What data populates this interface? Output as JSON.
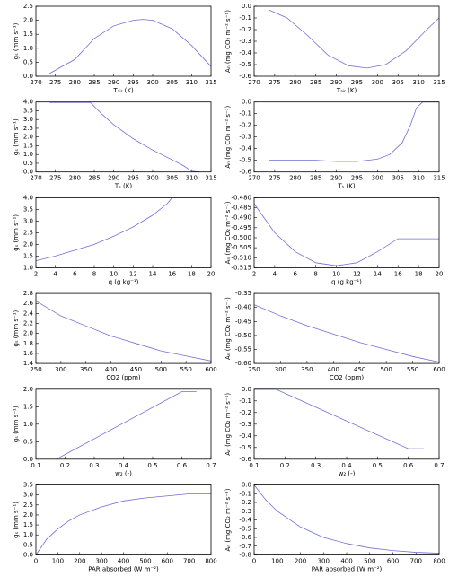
{
  "chart_data": [
    {
      "type": "line",
      "xlabel": "Tₐᵢᵣ (K)",
      "ylabel": "gₛ (mm s⁻¹)",
      "color": "#6f6fd8",
      "x": [
        273.5,
        280,
        285,
        290,
        295,
        297.5,
        300,
        305,
        310,
        315
      ],
      "values": [
        0.1,
        0.6,
        1.35,
        1.8,
        2.0,
        2.03,
        2.0,
        1.7,
        1.1,
        0.35
      ],
      "xlim": [
        270,
        315
      ],
      "xticks": [
        270,
        275,
        280,
        285,
        290,
        295,
        300,
        305,
        310,
        315
      ],
      "ylim": [
        0,
        2.5
      ],
      "yticks": [
        {
          "value": 0,
          "label": "0.0"
        },
        0.5,
        {
          "value": 1,
          "label": "1.0"
        },
        1.5,
        {
          "value": 2,
          "label": "2.0"
        },
        2.5
      ]
    },
    {
      "type": "line",
      "xlabel": "Tₐᵢᵣ (K)",
      "ylabel": "Aₙ (mg CO₂ m⁻² s⁻¹)",
      "color": "#6f6fd8",
      "x": [
        273.5,
        278,
        283,
        288,
        293,
        297.5,
        302,
        307,
        312,
        315
      ],
      "values": [
        -0.03,
        -0.1,
        -0.25,
        -0.42,
        -0.51,
        -0.53,
        -0.5,
        -0.38,
        -0.2,
        -0.1
      ],
      "xlim": [
        270,
        315
      ],
      "xticks": [
        270,
        275,
        280,
        285,
        290,
        295,
        300,
        305,
        310,
        315
      ],
      "ylim": [
        -0.6,
        0
      ],
      "yticks": [
        -0.6,
        -0.5,
        -0.4,
        -0.3,
        -0.2,
        -0.1,
        {
          "value": 0,
          "label": "0.0"
        }
      ]
    },
    {
      "type": "line",
      "xlabel": "Tₛ (K)",
      "ylabel": "gₛ (mm s⁻¹)",
      "color": "#6f6fd8",
      "x": [
        273.5,
        284,
        287,
        290,
        295,
        300,
        305,
        308,
        310,
        312
      ],
      "values": [
        3.97,
        3.97,
        3.3,
        2.7,
        1.9,
        1.25,
        0.7,
        0.35,
        0.05,
        0
      ],
      "xlim": [
        270,
        315
      ],
      "xticks": [
        270,
        275,
        280,
        285,
        290,
        295,
        300,
        305,
        310,
        315
      ],
      "ylim": [
        0,
        4
      ],
      "yticks": [
        {
          "value": 0,
          "label": "0.0"
        },
        0.5,
        {
          "value": 1,
          "label": "1.0"
        },
        1.5,
        {
          "value": 2,
          "label": "2.0"
        },
        2.5,
        {
          "value": 3,
          "label": "3.0"
        },
        3.5,
        {
          "value": 4,
          "label": "4.0"
        }
      ]
    },
    {
      "type": "line",
      "xlabel": "Tₛ (K)",
      "ylabel": "Aₙ (mg CO₂ m⁻² s⁻¹)",
      "color": "#6f6fd8",
      "x": [
        273.5,
        285,
        290,
        295,
        300,
        303,
        306,
        308,
        309.5,
        311,
        315
      ],
      "values": [
        -0.5,
        -0.5,
        -0.51,
        -0.51,
        -0.49,
        -0.45,
        -0.35,
        -0.2,
        -0.05,
        0,
        0
      ],
      "xlim": [
        270,
        315
      ],
      "xticks": [
        270,
        275,
        280,
        285,
        290,
        295,
        300,
        305,
        310,
        315
      ],
      "ylim": [
        -0.6,
        0
      ],
      "yticks": [
        -0.6,
        -0.5,
        -0.4,
        -0.3,
        -0.2,
        -0.1,
        {
          "value": 0,
          "label": "0.0"
        }
      ]
    },
    {
      "type": "line",
      "xlabel": "q (g kg⁻¹)",
      "ylabel": "gₛ (mm s⁻¹)",
      "color": "#6f6fd8",
      "x": [
        2,
        4,
        6,
        8,
        10,
        12,
        14,
        15.5,
        16
      ],
      "values": [
        1.3,
        1.5,
        1.75,
        2.0,
        2.35,
        2.75,
        3.25,
        3.75,
        4.0
      ],
      "xlim": [
        2,
        20
      ],
      "xticks": [
        2,
        4,
        6,
        8,
        10,
        12,
        14,
        16,
        18,
        20
      ],
      "ylim": [
        1,
        4
      ],
      "yticks": [
        {
          "value": 1,
          "label": "1.0"
        },
        1.5,
        {
          "value": 2,
          "label": "2.0"
        },
        2.5,
        {
          "value": 3,
          "label": "3.0"
        },
        3.5,
        {
          "value": 4,
          "label": "4.0"
        }
      ]
    },
    {
      "type": "line",
      "xlabel": "q (g kg⁻¹)",
      "ylabel": "Aₙ (mg CO₂ m⁻² s⁻¹)",
      "color": "#6f6fd8",
      "x": [
        2,
        4,
        6,
        8,
        10,
        12,
        14,
        16,
        20
      ],
      "values": [
        -0.483,
        -0.4975,
        -0.507,
        -0.5125,
        -0.514,
        -0.5125,
        -0.507,
        -0.5005,
        -0.5005
      ],
      "xlim": [
        2,
        20
      ],
      "xticks": [
        2,
        4,
        6,
        8,
        10,
        12,
        14,
        16,
        18,
        20
      ],
      "ylim": [
        -0.515,
        -0.48
      ],
      "yticks": [
        -0.515,
        {
          "value": -0.51,
          "label": "-0.510"
        },
        -0.505,
        {
          "value": -0.5,
          "label": "-0.500"
        },
        -0.495,
        {
          "value": -0.49,
          "label": "-0.490"
        },
        -0.485,
        {
          "value": -0.48,
          "label": "-0.480"
        }
      ]
    },
    {
      "type": "line",
      "xlabel": "CO2 (ppm)",
      "ylabel": "gₛ (mm s⁻¹)",
      "color": "#6f6fd8",
      "x": [
        250,
        300,
        350,
        400,
        450,
        500,
        550,
        600
      ],
      "values": [
        2.65,
        2.35,
        2.15,
        1.95,
        1.8,
        1.65,
        1.55,
        1.45
      ],
      "xlim": [
        250,
        600
      ],
      "xticks": [
        250,
        300,
        350,
        400,
        450,
        500,
        550,
        600
      ],
      "ylim": [
        1.4,
        2.8
      ],
      "yticks": [
        1.4,
        1.6,
        1.8,
        {
          "value": 2,
          "label": "2.0"
        },
        2.2,
        2.4,
        2.6,
        2.8
      ]
    },
    {
      "type": "line",
      "xlabel": "CO2 (ppm)",
      "ylabel": "Aₙ (mg CO₂ m⁻² s⁻¹)",
      "color": "#6f6fd8",
      "x": [
        250,
        300,
        350,
        400,
        450,
        500,
        550,
        600
      ],
      "values": [
        -0.39,
        -0.43,
        -0.465,
        -0.495,
        -0.525,
        -0.55,
        -0.575,
        -0.595
      ],
      "xlim": [
        250,
        600
      ],
      "xticks": [
        250,
        300,
        350,
        400,
        450,
        500,
        550,
        600
      ],
      "ylim": [
        -0.6,
        -0.35
      ],
      "yticks": [
        {
          "value": -0.6,
          "label": "-0.60"
        },
        -0.55,
        {
          "value": -0.5,
          "label": "-0.50"
        },
        -0.45,
        {
          "value": -0.4,
          "label": "-0.40"
        },
        -0.35
      ]
    },
    {
      "type": "line",
      "xlabel": "w₂ (-)",
      "ylabel": "gₛ (mm s⁻¹)",
      "color": "#6f6fd8",
      "x": [
        0.17,
        0.6,
        0.65
      ],
      "values": [
        0,
        1.93,
        1.93
      ],
      "xlim": [
        0.1,
        0.7
      ],
      "xticks": [
        0.1,
        0.2,
        0.3,
        0.4,
        0.5,
        0.6,
        0.7
      ],
      "ylim": [
        0,
        2
      ],
      "yticks": [
        {
          "value": 0,
          "label": "0.0"
        },
        0.5,
        {
          "value": 1,
          "label": "1.0"
        },
        1.5,
        {
          "value": 2,
          "label": "2.0"
        }
      ]
    },
    {
      "type": "line",
      "xlabel": "w₂ (-)",
      "ylabel": "Aₙ (mg CO₂ m⁻² s⁻¹)",
      "color": "#6f6fd8",
      "x": [
        0.1,
        0.17,
        0.6,
        0.65
      ],
      "values": [
        0,
        0,
        -0.51,
        -0.51
      ],
      "xlim": [
        0.1,
        0.7
      ],
      "xticks": [
        0.1,
        0.2,
        0.3,
        0.4,
        0.5,
        0.6,
        0.7
      ],
      "ylim": [
        -0.6,
        0
      ],
      "yticks": [
        -0.6,
        -0.5,
        -0.4,
        -0.3,
        -0.2,
        -0.1,
        {
          "value": 0,
          "label": "0.0"
        }
      ]
    },
    {
      "type": "line",
      "xlabel": "PAR absorbed (W m⁻²)",
      "ylabel": "gₛ (mm s⁻¹)",
      "color": "#6f6fd8",
      "x": [
        0,
        50,
        100,
        150,
        200,
        300,
        400,
        500,
        600,
        700,
        800
      ],
      "values": [
        0,
        0.8,
        1.3,
        1.7,
        2.0,
        2.4,
        2.7,
        2.85,
        2.95,
        3.05,
        3.05
      ],
      "xlim": [
        0,
        800
      ],
      "xticks": [
        0,
        100,
        200,
        300,
        400,
        500,
        600,
        700,
        800
      ],
      "ylim": [
        0,
        3.5
      ],
      "yticks": [
        {
          "value": 0,
          "label": "0.0"
        },
        0.5,
        {
          "value": 1,
          "label": "1.0"
        },
        1.5,
        {
          "value": 2,
          "label": "2.0"
        },
        2.5,
        {
          "value": 3,
          "label": "3.0"
        },
        3.5
      ]
    },
    {
      "type": "line",
      "xlabel": "PAR absorbed (W m⁻²)",
      "ylabel": "Aₙ (mg CO₂ m⁻² s⁻¹)",
      "color": "#6f6fd8",
      "x": [
        0,
        50,
        100,
        200,
        300,
        400,
        500,
        600,
        700,
        800
      ],
      "values": [
        0,
        -0.17,
        -0.3,
        -0.48,
        -0.6,
        -0.67,
        -0.72,
        -0.75,
        -0.77,
        -0.78
      ],
      "xlim": [
        0,
        800
      ],
      "xticks": [
        0,
        100,
        200,
        300,
        400,
        500,
        600,
        700,
        800
      ],
      "ylim": [
        -0.8,
        0
      ],
      "yticks": [
        -0.8,
        -0.7,
        -0.6,
        -0.5,
        -0.4,
        -0.3,
        -0.2,
        -0.1,
        {
          "value": 0,
          "label": "0.0"
        }
      ]
    }
  ]
}
